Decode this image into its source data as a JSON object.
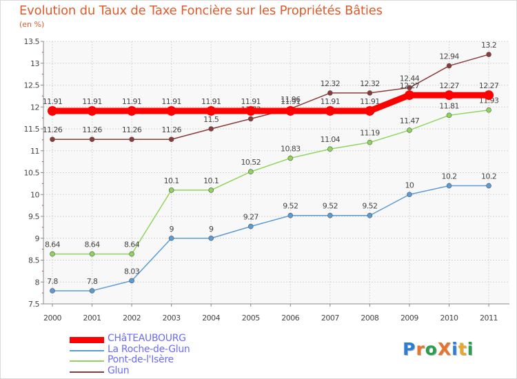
{
  "title": "Evolution du Taux de Taxe Foncière sur les Propriétés Bâties",
  "unit_label": "(en %)",
  "brand": {
    "text": "ProXiti",
    "letters": [
      "P",
      "r",
      "o",
      "X",
      "i",
      "t",
      "i"
    ],
    "colors": [
      "#2a7fd4",
      "#e8752b",
      "#2a9d4f",
      "#e8752b",
      "#2a7fd4",
      "#e8a82b",
      "#2a9d4f"
    ]
  },
  "chart_data": {
    "type": "line",
    "x": [
      "2000",
      "2001",
      "2002",
      "2003",
      "2004",
      "2005",
      "2006",
      "2007",
      "2008",
      "2009",
      "2010",
      "2011"
    ],
    "ylim": [
      7.5,
      13.5
    ],
    "yticks": [
      "7.5",
      "8",
      "8.5",
      "9",
      "9.5",
      "10",
      "10.5",
      "11",
      "11.5",
      "12",
      "12.5",
      "13",
      "13.5"
    ],
    "grid": true,
    "legend_position": "bottom-left",
    "series": [
      {
        "name": "CHâTEAUBOURG",
        "color": "#ff0000",
        "values": [
          11.91,
          11.91,
          11.91,
          11.91,
          11.91,
          11.91,
          11.91,
          11.91,
          11.91,
          12.27,
          12.27,
          12.27
        ],
        "labels": [
          "11.91",
          "11.91",
          "11.91",
          "11.91",
          "11.91",
          "11.91",
          "11.91",
          "11.91",
          "11.91",
          "12.27",
          "12.27",
          "12.27"
        ]
      },
      {
        "name": "La Roche-de-Glun",
        "color": "#5b9bd5",
        "values": [
          7.8,
          7.8,
          8.03,
          9,
          9,
          9.27,
          9.52,
          9.52,
          9.52,
          10,
          10.2,
          10.2
        ],
        "labels": [
          "7.8",
          "7.8",
          "8.03",
          "9",
          "9",
          "9.27",
          "9.52",
          "9.52",
          "9.52",
          "10",
          "10.2",
          "10.2"
        ]
      },
      {
        "name": "Pont-de-l'Isère",
        "color": "#8ed45a",
        "values": [
          8.64,
          8.64,
          8.64,
          10.1,
          10.1,
          10.52,
          10.83,
          11.04,
          11.19,
          11.47,
          11.81,
          11.93
        ],
        "labels": [
          "8.64",
          "8.64",
          "8.64",
          "10.1",
          "10.1",
          "10.52",
          "10.83",
          "11.04",
          "11.19",
          "11.47",
          "11.81",
          "11.93"
        ]
      },
      {
        "name": "Glun",
        "color": "#8b3a3a",
        "values": [
          11.26,
          11.26,
          11.26,
          11.26,
          11.5,
          11.73,
          11.96,
          12.32,
          12.32,
          12.44,
          12.94,
          13.2
        ],
        "labels": [
          "11.26",
          "11.26",
          "11.26",
          "11.26",
          "11.5",
          "11.73",
          "11.96",
          "12.32",
          "12.32",
          "12.44",
          "12.94",
          "13.2"
        ]
      }
    ]
  }
}
